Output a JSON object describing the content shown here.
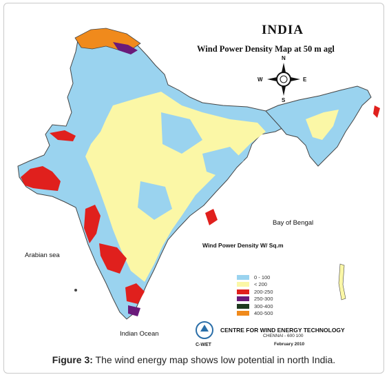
{
  "map": {
    "title": "INDIA",
    "subtitle": "Wind Power Density  Map at 50 m agl",
    "density_caption": "Wind Power Density W/ Sq.m",
    "water_labels": {
      "arabian_sea": "Arabian sea",
      "bay_of_bengal": "Bay of Bengal",
      "indian_ocean": "Indian Ocean"
    },
    "compass": {
      "n": "N",
      "s": "S",
      "e": "E",
      "w": "W"
    },
    "legend": [
      {
        "label": "0 - 100",
        "color": "#9ad3ef"
      },
      {
        "label": "< 200",
        "color": "#fbf7a6"
      },
      {
        "label": "200-250",
        "color": "#e0201d"
      },
      {
        "label": "250-300",
        "color": "#6a1a7a"
      },
      {
        "label": "300-400",
        "color": "#1e3a20"
      },
      {
        "label": "400-500",
        "color": "#f08a1c"
      }
    ],
    "source": {
      "org": "CENTRE FOR WIND ENERGY TECHNOLOGY",
      "city": "CHENNAI - 600 100",
      "abbr": "C-WET",
      "date": "February 2010"
    }
  },
  "caption": {
    "label": "Figure 3:",
    "text": " The wind energy map shows low potential in north India."
  }
}
